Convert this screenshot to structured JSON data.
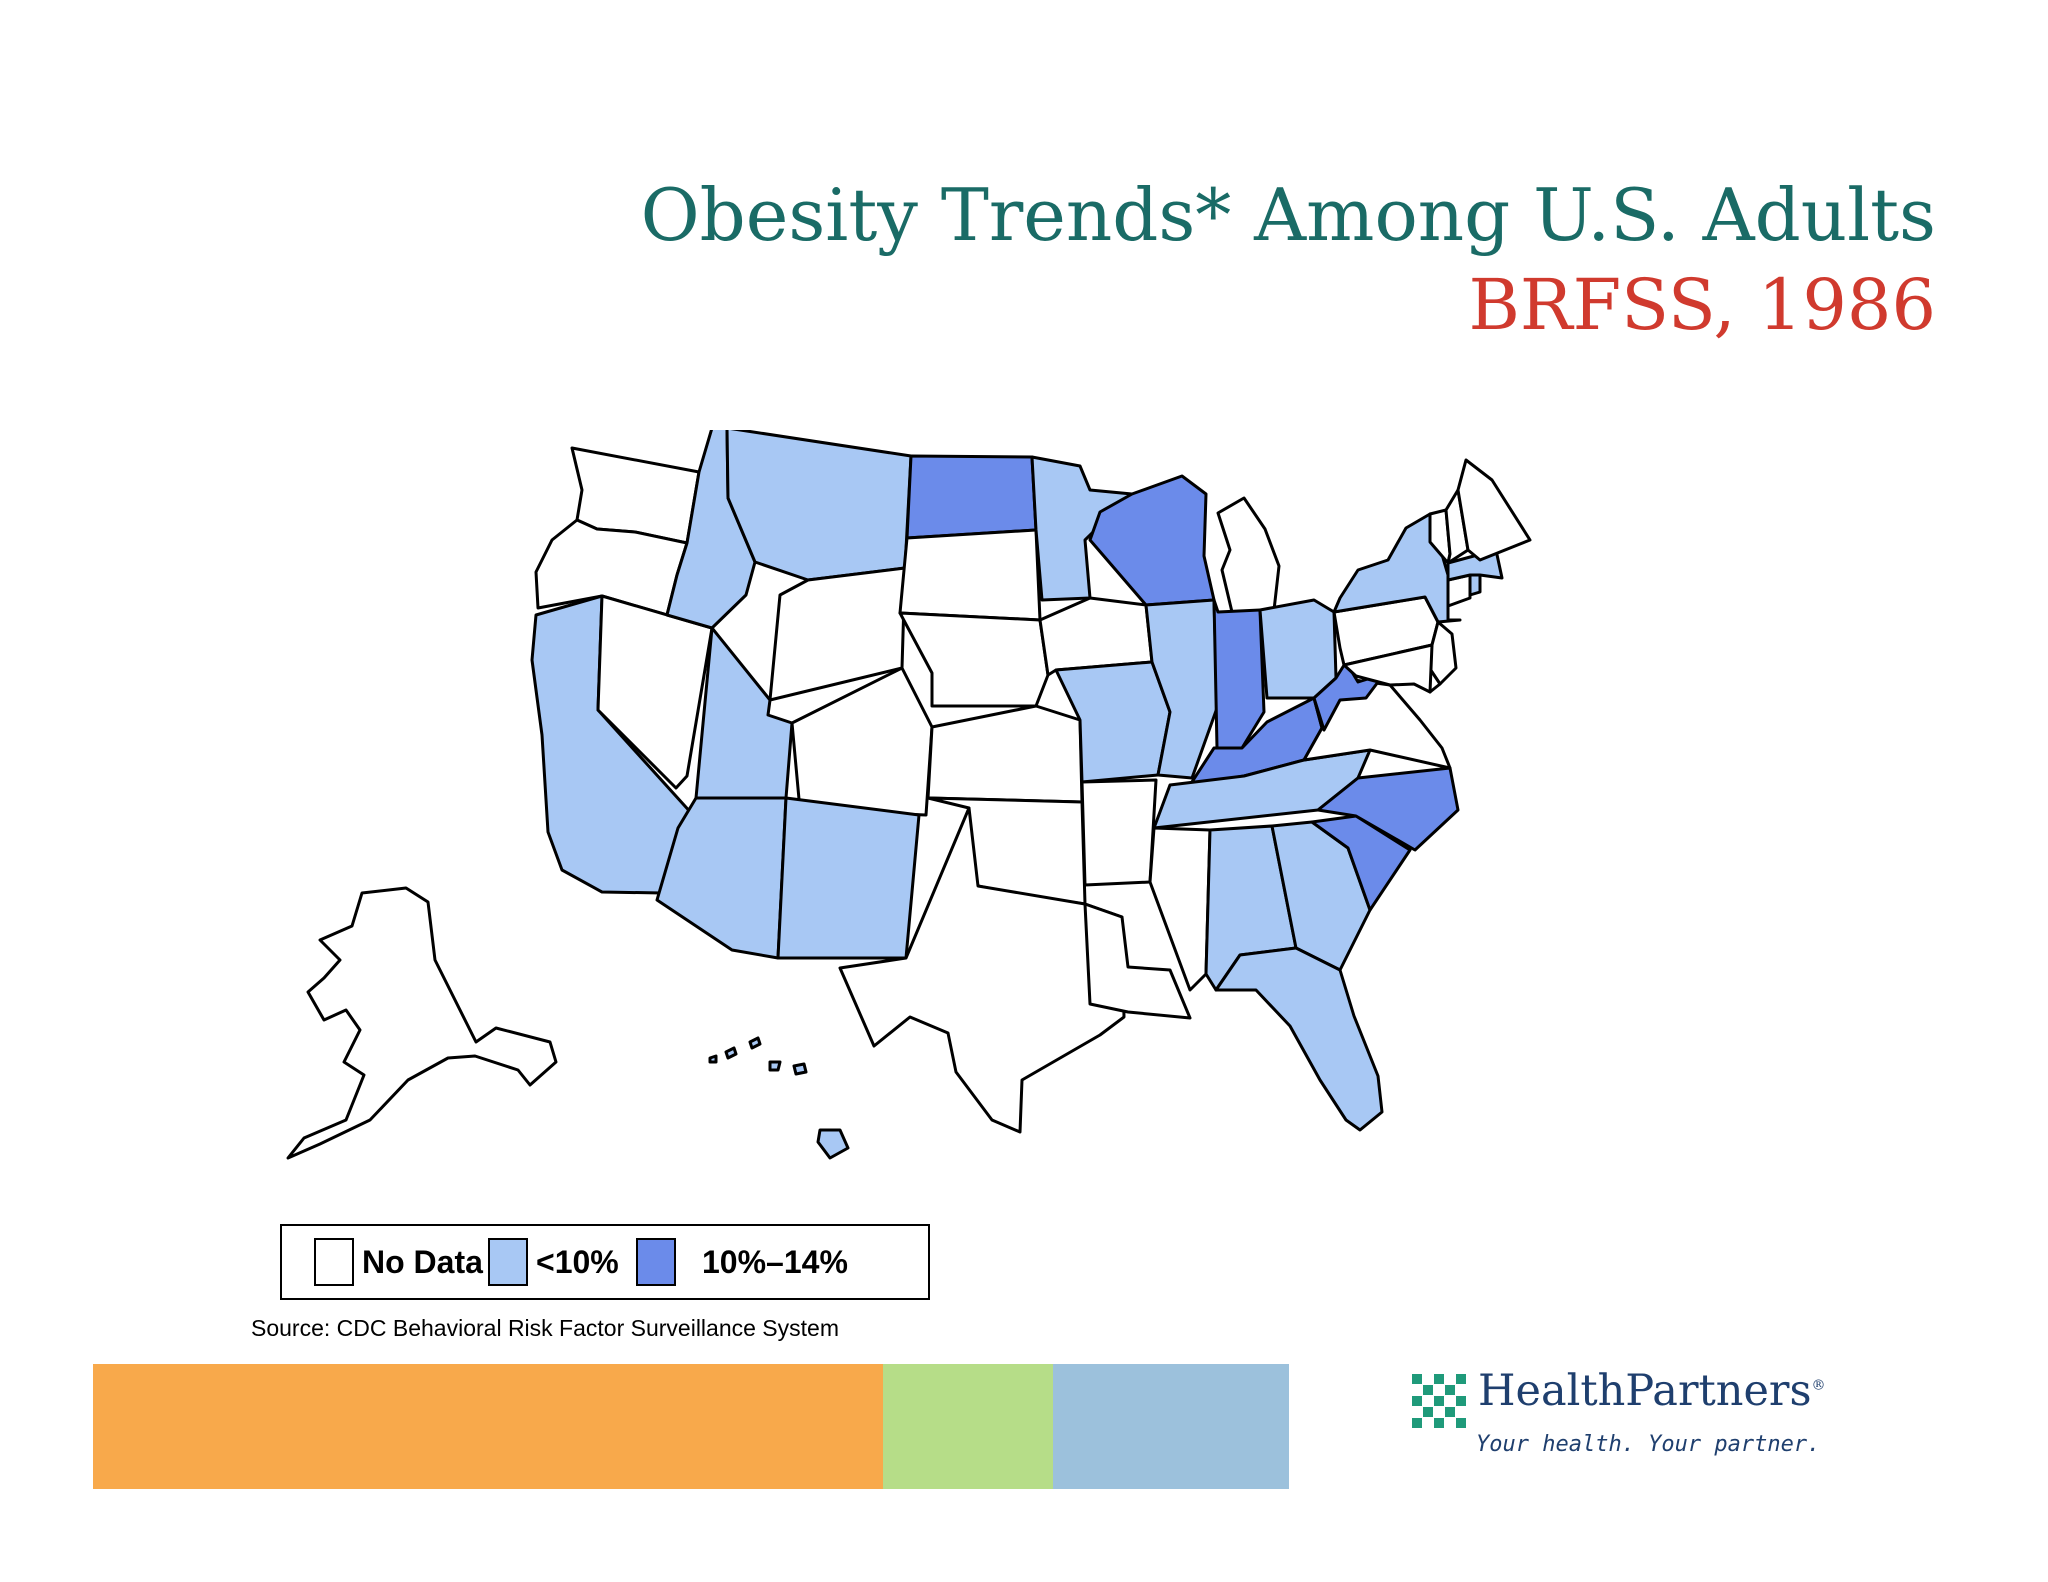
{
  "title": {
    "line1": "Obesity Trends* Among U.S. Adults",
    "line2": "BRFSS, 1986"
  },
  "colors": {
    "title": "#1a6b66",
    "subtitle": "#d03a2e",
    "no_data": "#ffffff",
    "lt10": "#a8c8f4",
    "10_14": "#6b8bea",
    "bar_orange": "#f8a94b",
    "bar_green": "#b6dd88",
    "bar_blue": "#9cc1dc"
  },
  "legend": {
    "items": [
      {
        "label": "No Data",
        "color": "#ffffff"
      },
      {
        "label": "<10%",
        "color": "#a8c8f4"
      },
      {
        "label": "10%–14%",
        "color": "#6b8bea"
      }
    ]
  },
  "source": "Source: CDC Behavioral Risk Factor Surveillance  System",
  "map_data": {
    "categories": [
      "No Data",
      "<10%",
      "10%–14%"
    ],
    "states": {
      "WA": "No Data",
      "OR": "No Data",
      "CA": "<10%",
      "NV": "No Data",
      "ID": "<10%",
      "MT": "<10%",
      "WY": "No Data",
      "UT": "<10%",
      "AZ": "<10%",
      "CO": "No Data",
      "NM": "<10%",
      "ND": "10%–14%",
      "SD": "No Data",
      "NE": "No Data",
      "KS": "No Data",
      "OK": "No Data",
      "TX": "No Data",
      "MN": "<10%",
      "IA": "No Data",
      "MO": "<10%",
      "AR": "No Data",
      "LA": "No Data",
      "WI": "10%–14%",
      "IL": "<10%",
      "MI": "No Data",
      "IN": "10%–14%",
      "OH": "<10%",
      "KY": "10%–14%",
      "TN": "<10%",
      "MS": "No Data",
      "AL": "<10%",
      "GA": "<10%",
      "FL": "<10%",
      "SC": "10%–14%",
      "NC": "10%–14%",
      "VA": "No Data",
      "WV": "10%–14%",
      "PA": "No Data",
      "NY": "<10%",
      "NJ": "No Data",
      "DE": "No Data",
      "MD": "No Data",
      "CT": "No Data",
      "RI": "<10%",
      "MA": "<10%",
      "VT": "No Data",
      "NH": "No Data",
      "ME": "No Data",
      "AK": "No Data",
      "HI": "<10%"
    }
  },
  "brand": {
    "name": "HealthPartners",
    "tagline": "Your health. Your partner."
  }
}
